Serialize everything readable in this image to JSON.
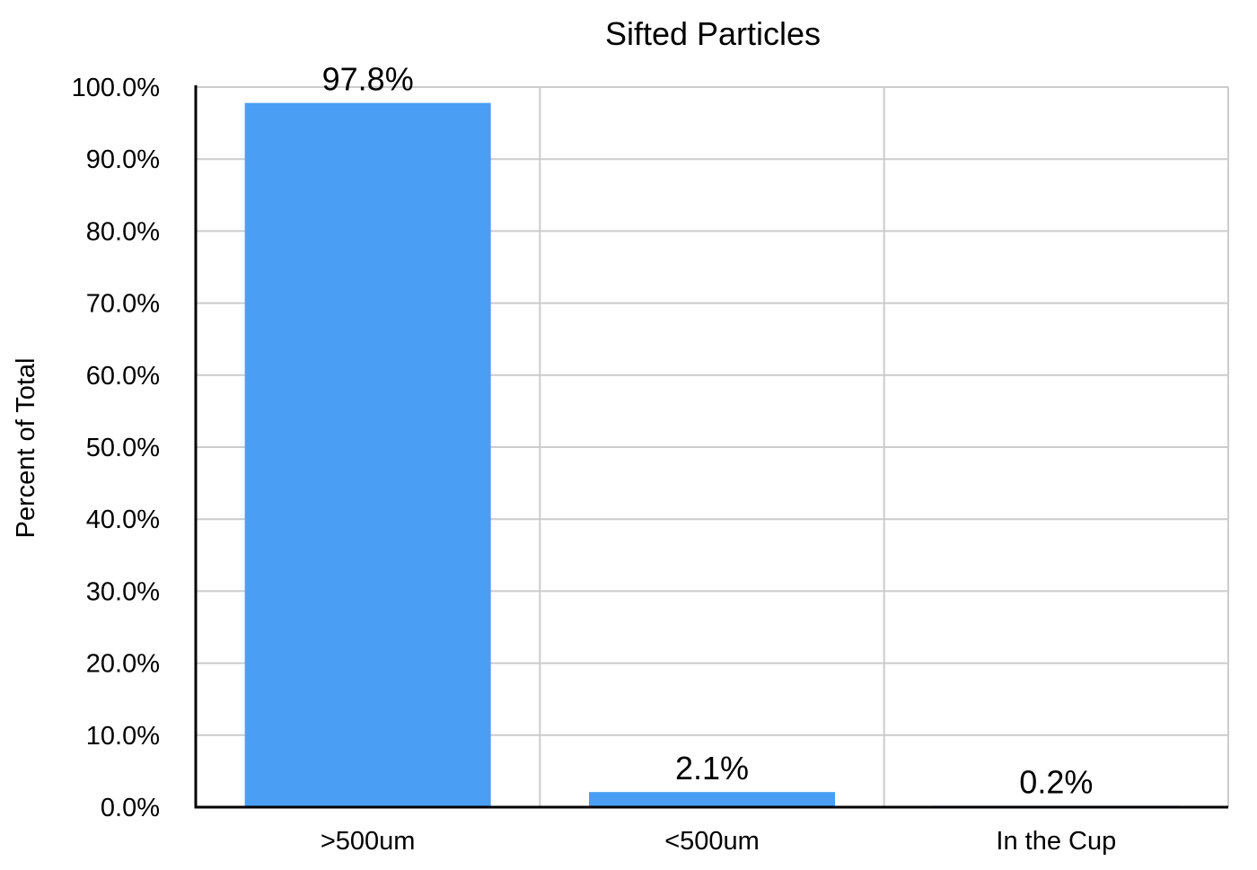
{
  "chart_data": {
    "type": "bar",
    "title": "Sifted Particles",
    "xlabel": "",
    "ylabel": "Percent of Total",
    "categories": [
      ">500um",
      "<500um",
      "In the Cup"
    ],
    "values": [
      97.8,
      2.1,
      0.2
    ],
    "data_labels": [
      "97.8%",
      "2.1%",
      "0.2%"
    ],
    "ylim": [
      0,
      100
    ],
    "y_ticks": [
      0,
      10,
      20,
      30,
      40,
      50,
      60,
      70,
      80,
      90,
      100
    ],
    "y_tick_labels": [
      "0.0%",
      "10.0%",
      "20.0%",
      "30.0%",
      "40.0%",
      "50.0%",
      "60.0%",
      "70.0%",
      "80.0%",
      "90.0%",
      "100.0%"
    ],
    "grid": true,
    "legend": "none",
    "bar_color": "#4a9ff5",
    "grid_color": "#cccccc",
    "axis_color": "#000000"
  }
}
